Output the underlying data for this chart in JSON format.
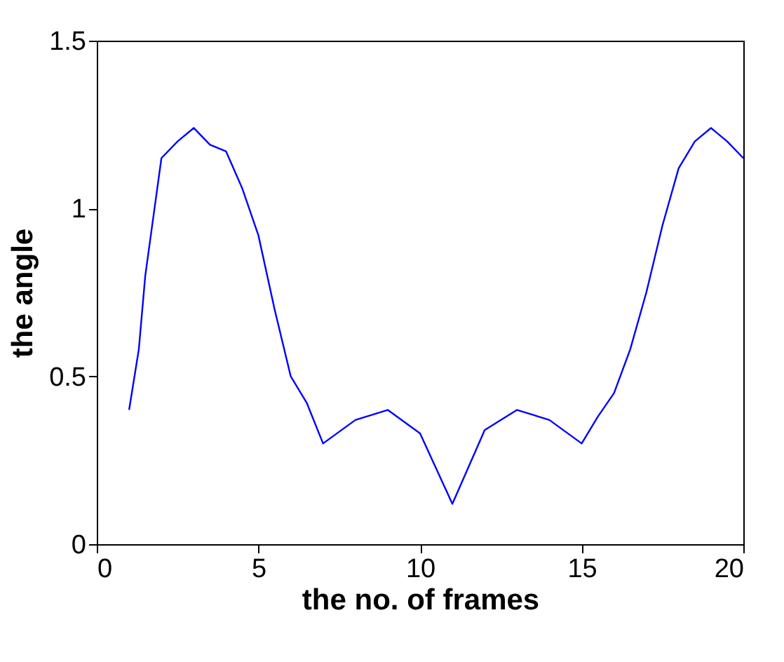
{
  "chart_data": {
    "type": "line",
    "xlabel": "the no. of frames",
    "ylabel": "the angle",
    "x": [
      1,
      1.3,
      1.5,
      2,
      2.5,
      3,
      3.5,
      4,
      4.5,
      5,
      5.5,
      6,
      6.5,
      7,
      8,
      9,
      10,
      11,
      12,
      13,
      14,
      15,
      15.5,
      16,
      16.5,
      17,
      17.5,
      18,
      18.5,
      19,
      19.5,
      20
    ],
    "series": [
      {
        "color": "#0000ff",
        "values": [
          0.4,
          0.58,
          0.8,
          1.15,
          1.2,
          1.24,
          1.19,
          1.17,
          1.06,
          0.92,
          0.7,
          0.5,
          0.42,
          0.3,
          0.37,
          0.4,
          0.33,
          0.12,
          0.34,
          0.4,
          0.37,
          0.3,
          0.38,
          0.45,
          0.58,
          0.75,
          0.95,
          1.12,
          1.2,
          1.24,
          1.2,
          1.15
        ]
      }
    ],
    "xlim": [
      0,
      20
    ],
    "xticks": [
      0,
      5,
      10,
      15,
      20
    ],
    "ylim": [
      0,
      1.5
    ],
    "yticks": [
      0,
      0.5,
      1,
      1.5
    ],
    "grid": false,
    "legend": false,
    "marker": "none",
    "line_style": "solid"
  }
}
